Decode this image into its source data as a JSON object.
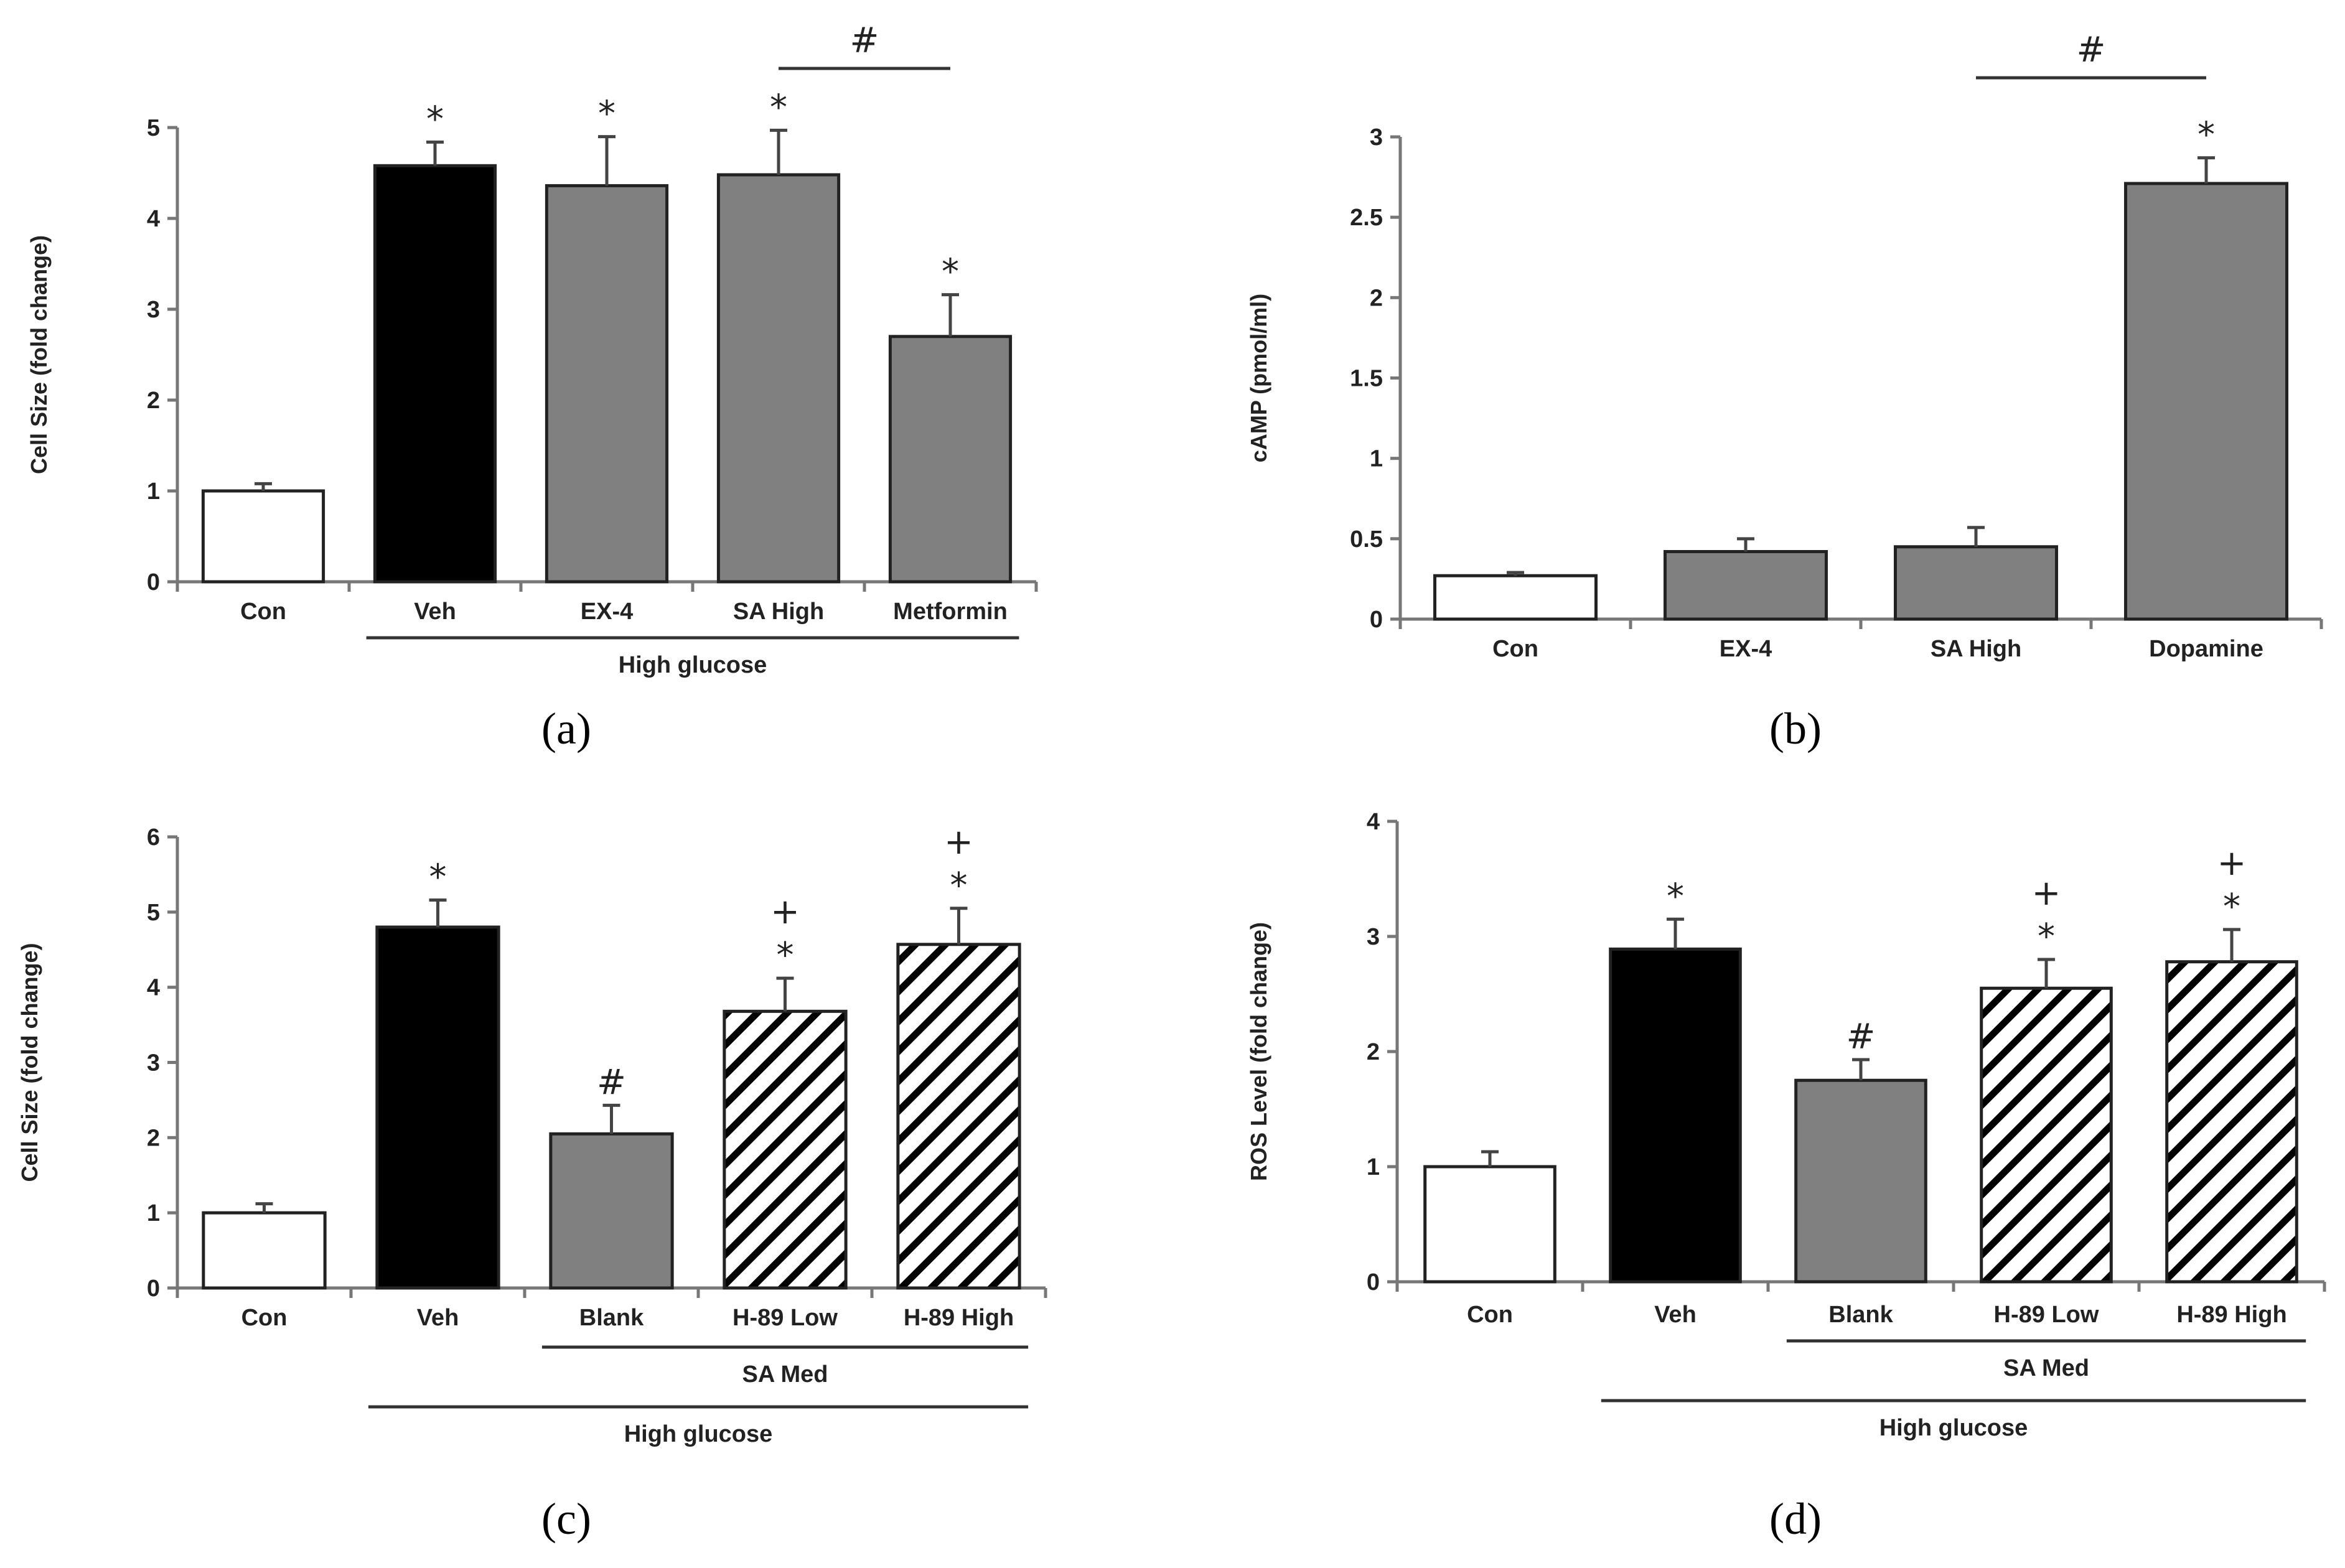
{
  "colors": {
    "white": "#ffffff",
    "black": "#000000",
    "gray": "#808080",
    "hatch": "url(#hatch)"
  },
  "chart_data": [
    {
      "panel_label": "(a)",
      "type": "bar",
      "ylabel": "Cell Size (fold change)",
      "ylim": [
        0,
        5
      ],
      "yticks": [
        "0",
        "1",
        "2",
        "3",
        "4",
        "5"
      ],
      "categories": [
        "Con",
        "Veh",
        "EX-4",
        "SA High",
        "Metformin"
      ],
      "values": [
        1.0,
        4.58,
        4.36,
        4.48,
        2.7
      ],
      "errors": [
        0.08,
        0.26,
        0.54,
        0.49,
        0.46
      ],
      "fills": [
        "white",
        "black",
        "gray",
        "gray",
        "gray"
      ],
      "annotations": [
        {
          "cat": 1,
          "lines": [
            "*"
          ]
        },
        {
          "cat": 2,
          "lines": [
            "*"
          ]
        },
        {
          "cat": 3,
          "lines": [
            "*"
          ]
        },
        {
          "cat": 4,
          "lines": [
            "*"
          ]
        }
      ],
      "groups": [
        {
          "label": "High glucose",
          "from": 1,
          "to": 4,
          "level": 1
        }
      ],
      "brackets": [
        {
          "from": 3,
          "to": 4,
          "label": "#"
        }
      ]
    },
    {
      "panel_label": "(b)",
      "type": "bar",
      "ylabel": "cAMP (pmol/ml)",
      "ylim": [
        0,
        3
      ],
      "yticks": [
        "0",
        "0.5",
        "1",
        "1.5",
        "2",
        "2.5",
        "3"
      ],
      "categories": [
        "Con",
        "EX-4",
        "SA High",
        "Dopamine"
      ],
      "values": [
        0.27,
        0.42,
        0.45,
        2.71
      ],
      "errors": [
        0.02,
        0.08,
        0.12,
        0.16
      ],
      "fills": [
        "white",
        "gray",
        "gray",
        "gray"
      ],
      "annotations": [
        {
          "cat": 3,
          "lines": [
            "*"
          ]
        }
      ],
      "groups": [],
      "brackets": [
        {
          "from": 2,
          "to": 3,
          "label": "#"
        }
      ]
    },
    {
      "panel_label": "(c)",
      "type": "bar",
      "ylabel": "Cell Size (fold change)",
      "ylim": [
        0,
        6
      ],
      "yticks": [
        "0",
        "1",
        "2",
        "3",
        "4",
        "5",
        "6"
      ],
      "categories": [
        "Con",
        "Veh",
        "Blank",
        "H-89 Low",
        "H-89 High"
      ],
      "values": [
        1.0,
        4.8,
        2.05,
        3.68,
        4.57
      ],
      "errors": [
        0.12,
        0.36,
        0.38,
        0.44,
        0.48
      ],
      "fills": [
        "white",
        "black",
        "gray",
        "hatch",
        "hatch"
      ],
      "annotations": [
        {
          "cat": 1,
          "lines": [
            "*"
          ]
        },
        {
          "cat": 2,
          "lines": [
            "#"
          ]
        },
        {
          "cat": 3,
          "lines": [
            "+",
            "*"
          ]
        },
        {
          "cat": 4,
          "lines": [
            "+",
            "*"
          ]
        }
      ],
      "groups": [
        {
          "label": "SA Med",
          "from": 2,
          "to": 4,
          "level": 1
        },
        {
          "label": "High glucose",
          "from": 1,
          "to": 4,
          "level": 2
        }
      ],
      "brackets": []
    },
    {
      "panel_label": "(d)",
      "type": "bar",
      "ylabel": "ROS Level (fold change)",
      "ylim": [
        0,
        4
      ],
      "yticks": [
        "0",
        "1",
        "2",
        "3",
        "4"
      ],
      "categories": [
        "Con",
        "Veh",
        "Blank",
        "H-89 Low",
        "H-89 High"
      ],
      "values": [
        1.0,
        2.89,
        1.75,
        2.55,
        2.78
      ],
      "errors": [
        0.13,
        0.26,
        0.18,
        0.25,
        0.28
      ],
      "fills": [
        "white",
        "black",
        "gray",
        "hatch",
        "hatch"
      ],
      "annotations": [
        {
          "cat": 1,
          "lines": [
            "*"
          ]
        },
        {
          "cat": 2,
          "lines": [
            "#"
          ]
        },
        {
          "cat": 3,
          "lines": [
            "+",
            "*"
          ]
        },
        {
          "cat": 4,
          "lines": [
            "+",
            "*"
          ]
        }
      ],
      "groups": [
        {
          "label": "SA Med",
          "from": 2,
          "to": 4,
          "level": 1
        },
        {
          "label": "High glucose",
          "from": 1,
          "to": 4,
          "level": 2
        }
      ],
      "brackets": []
    }
  ]
}
